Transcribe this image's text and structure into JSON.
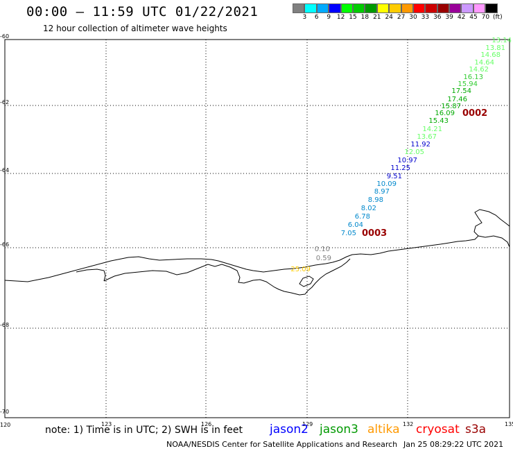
{
  "header": {
    "title": "00:00 – 11:59 UTC 01/22/2021",
    "subtitle": "12 hour collection of altimeter wave heights"
  },
  "legend": {
    "colors": [
      "#808080",
      "#00ffff",
      "#00aaff",
      "#0000ff",
      "#00ff00",
      "#00cc00",
      "#009900",
      "#ffff00",
      "#ffcc00",
      "#ff9900",
      "#ff0000",
      "#cc0000",
      "#990000",
      "#990099",
      "#cc99ff",
      "#ff99ff",
      "#000000"
    ],
    "labels": [
      "3",
      "6",
      "9",
      "12",
      "15",
      "18",
      "21",
      "24",
      "27",
      "30",
      "33",
      "36",
      "39",
      "42",
      "45",
      "70",
      "(ft)"
    ]
  },
  "axes": {
    "lat_labels": [
      "-60",
      "-62",
      "-64",
      "-66",
      "-68",
      "-70"
    ],
    "lon_labels": [
      "120",
      "123",
      "126",
      "129",
      "132",
      "135"
    ]
  },
  "chart_data": {
    "type": "scatter",
    "tracks": [
      {
        "id": "0002",
        "label_color": "#990000",
        "points": [
          {
            "v": "13.14",
            "c": "#66ff66"
          },
          {
            "v": "13.81",
            "c": "#66ff66"
          },
          {
            "v": "14.68",
            "c": "#66ff66"
          },
          {
            "v": "14.64",
            "c": "#66ff66"
          },
          {
            "v": "14.62",
            "c": "#66ff66"
          },
          {
            "v": "16.13",
            "c": "#33cc33"
          },
          {
            "v": "15.94",
            "c": "#33cc33"
          },
          {
            "v": "17.54",
            "c": "#00aa00"
          },
          {
            "v": "17.46",
            "c": "#00aa00"
          },
          {
            "v": "15.87",
            "c": "#00aa00"
          },
          {
            "v": "16.09",
            "c": "#00aa00"
          },
          {
            "v": "15.43",
            "c": "#00aa00"
          },
          {
            "v": "14.21",
            "c": "#66ff66"
          },
          {
            "v": "13.67",
            "c": "#66ff66"
          },
          {
            "v": "11.92",
            "c": "#0000cc"
          },
          {
            "v": "12.05",
            "c": "#66ff66"
          },
          {
            "v": "10.97",
            "c": "#0000cc"
          },
          {
            "v": "11.25",
            "c": "#0000cc"
          },
          {
            "v": "9.51",
            "c": "#0000cc"
          },
          {
            "v": "10.09",
            "c": "#0088cc"
          },
          {
            "v": "8.97",
            "c": "#0088cc"
          },
          {
            "v": "8.98",
            "c": "#0088cc"
          },
          {
            "v": "8.02",
            "c": "#0088cc"
          },
          {
            "v": "6.78",
            "c": "#0088cc"
          },
          {
            "v": "6.04",
            "c": "#0088cc"
          },
          {
            "v": "7.05",
            "c": "#0088cc"
          }
        ]
      },
      {
        "id": "0003",
        "label_color": "#990000",
        "points": [
          {
            "v": "0.10",
            "c": "#808080"
          },
          {
            "v": "0.59",
            "c": "#808080"
          },
          {
            "v": "25.09",
            "c": "#ffcc00"
          }
        ]
      }
    ]
  },
  "footer": {
    "note": "note: 1) Time is in UTC; 2) SWH is in feet",
    "satellites": [
      {
        "name": "jason2",
        "color": "#0000ff"
      },
      {
        "name": "jason3",
        "color": "#009900"
      },
      {
        "name": "altika",
        "color": "#ff9900"
      },
      {
        "name": "cryosat",
        "color": "#ff0000"
      },
      {
        "name": "s3a",
        "color": "#990000"
      }
    ],
    "credit": "NOAA/NESDIS Center for Satellite Applications and Research",
    "timestamp": "Jan 25 08:29:22 UTC 2021"
  }
}
